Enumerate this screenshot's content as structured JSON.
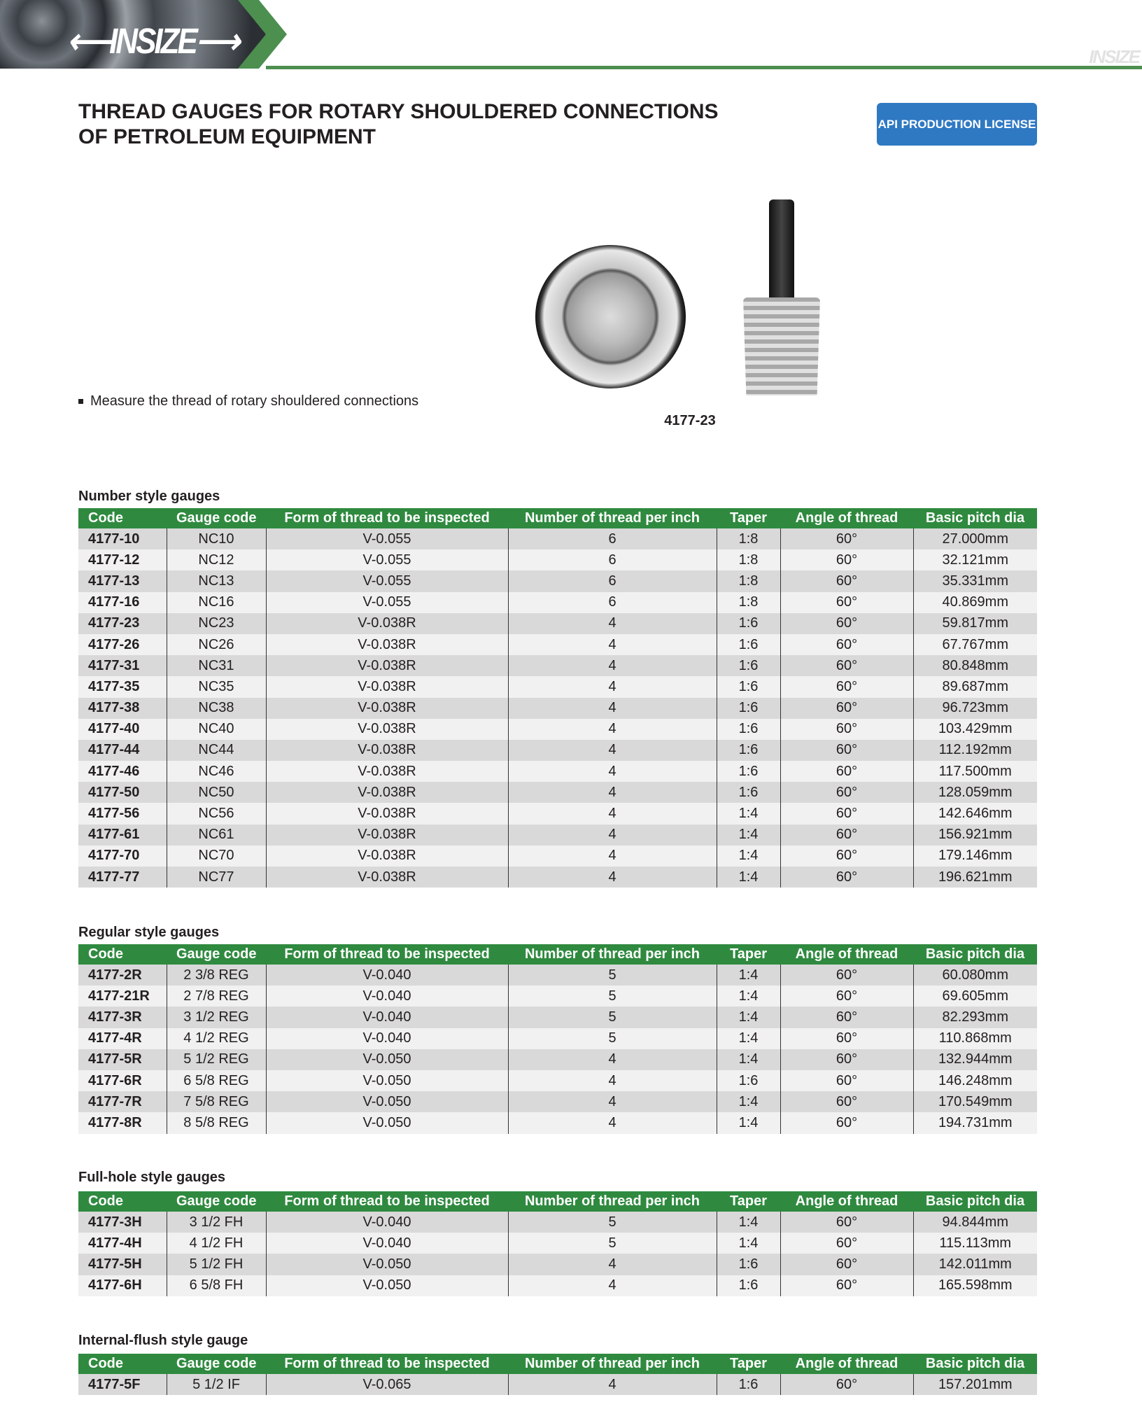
{
  "header": {
    "logo": "INSIZE",
    "logo_small": "INSIZE",
    "brand_color": "#4c8f4f"
  },
  "title_line1": "THREAD GAUGES FOR ROTARY SHOULDERED CONNECTIONS",
  "title_line2": "OF PETROLEUM EQUIPMENT",
  "badge": {
    "label": "API PRODUCTION LICENSE",
    "color": "#2f79c3"
  },
  "feature": "Measure the thread of rotary shouldered connections",
  "image_caption": "4177-23",
  "columns": [
    "Code",
    "Gauge code",
    "Form of thread to be inspected",
    "Number of thread per inch",
    "Taper",
    "Angle of thread",
    "Basic pitch dia"
  ],
  "tables": [
    {
      "title": "Number style gauges",
      "rows": [
        [
          "4177-10",
          "NC10",
          "V-0.055",
          "6",
          "1:8",
          "60°",
          "27.000mm"
        ],
        [
          "4177-12",
          "NC12",
          "V-0.055",
          "6",
          "1:8",
          "60°",
          "32.121mm"
        ],
        [
          "4177-13",
          "NC13",
          "V-0.055",
          "6",
          "1:8",
          "60°",
          "35.331mm"
        ],
        [
          "4177-16",
          "NC16",
          "V-0.055",
          "6",
          "1:8",
          "60°",
          "40.869mm"
        ],
        [
          "4177-23",
          "NC23",
          "V-0.038R",
          "4",
          "1:6",
          "60°",
          "59.817mm"
        ],
        [
          "4177-26",
          "NC26",
          "V-0.038R",
          "4",
          "1:6",
          "60°",
          "67.767mm"
        ],
        [
          "4177-31",
          "NC31",
          "V-0.038R",
          "4",
          "1:6",
          "60°",
          "80.848mm"
        ],
        [
          "4177-35",
          "NC35",
          "V-0.038R",
          "4",
          "1:6",
          "60°",
          "89.687mm"
        ],
        [
          "4177-38",
          "NC38",
          "V-0.038R",
          "4",
          "1:6",
          "60°",
          "96.723mm"
        ],
        [
          "4177-40",
          "NC40",
          "V-0.038R",
          "4",
          "1:6",
          "60°",
          "103.429mm"
        ],
        [
          "4177-44",
          "NC44",
          "V-0.038R",
          "4",
          "1:6",
          "60°",
          "112.192mm"
        ],
        [
          "4177-46",
          "NC46",
          "V-0.038R",
          "4",
          "1:6",
          "60°",
          "117.500mm"
        ],
        [
          "4177-50",
          "NC50",
          "V-0.038R",
          "4",
          "1:6",
          "60°",
          "128.059mm"
        ],
        [
          "4177-56",
          "NC56",
          "V-0.038R",
          "4",
          "1:4",
          "60°",
          "142.646mm"
        ],
        [
          "4177-61",
          "NC61",
          "V-0.038R",
          "4",
          "1:4",
          "60°",
          "156.921mm"
        ],
        [
          "4177-70",
          "NC70",
          "V-0.038R",
          "4",
          "1:4",
          "60°",
          "179.146mm"
        ],
        [
          "4177-77",
          "NC77",
          "V-0.038R",
          "4",
          "1:4",
          "60°",
          "196.621mm"
        ]
      ]
    },
    {
      "title": "Regular style gauges",
      "rows": [
        [
          "4177-2R",
          "2 3/8 REG",
          "V-0.040",
          "5",
          "1:4",
          "60°",
          "60.080mm"
        ],
        [
          "4177-21R",
          "2 7/8 REG",
          "V-0.040",
          "5",
          "1:4",
          "60°",
          "69.605mm"
        ],
        [
          "4177-3R",
          "3 1/2 REG",
          "V-0.040",
          "5",
          "1:4",
          "60°",
          "82.293mm"
        ],
        [
          "4177-4R",
          "4 1/2 REG",
          "V-0.040",
          "5",
          "1:4",
          "60°",
          "110.868mm"
        ],
        [
          "4177-5R",
          "5 1/2 REG",
          "V-0.050",
          "4",
          "1:4",
          "60°",
          "132.944mm"
        ],
        [
          "4177-6R",
          "6 5/8 REG",
          "V-0.050",
          "4",
          "1:6",
          "60°",
          "146.248mm"
        ],
        [
          "4177-7R",
          "7 5/8 REG",
          "V-0.050",
          "4",
          "1:4",
          "60°",
          "170.549mm"
        ],
        [
          "4177-8R",
          "8 5/8 REG",
          "V-0.050",
          "4",
          "1:4",
          "60°",
          "194.731mm"
        ]
      ]
    },
    {
      "title": "Full-hole style gauges",
      "rows": [
        [
          "4177-3H",
          "3 1/2 FH",
          "V-0.040",
          "5",
          "1:4",
          "60°",
          "94.844mm"
        ],
        [
          "4177-4H",
          "4 1/2 FH",
          "V-0.040",
          "5",
          "1:4",
          "60°",
          "115.113mm"
        ],
        [
          "4177-5H",
          "5 1/2 FH",
          "V-0.050",
          "4",
          "1:6",
          "60°",
          "142.011mm"
        ],
        [
          "4177-6H",
          "6 5/8 FH",
          "V-0.050",
          "4",
          "1:6",
          "60°",
          "165.598mm"
        ]
      ]
    },
    {
      "title": "Internal-flush style gauge",
      "rows": [
        [
          "4177-5F",
          "5 1/2 IF",
          "V-0.065",
          "4",
          "1:6",
          "60°",
          "157.201mm"
        ]
      ]
    }
  ]
}
